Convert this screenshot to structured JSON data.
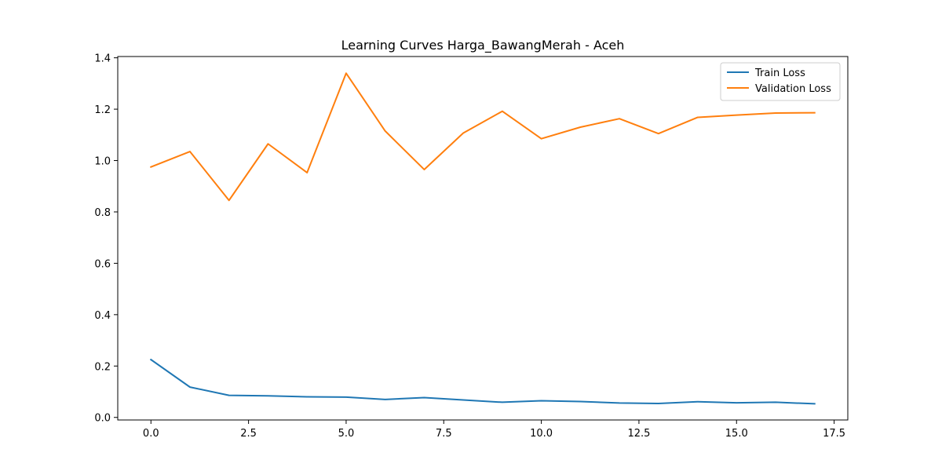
{
  "chart_data": {
    "type": "line",
    "title": "Learning Curves Harga_BawangMerah - Aceh",
    "xlabel": "",
    "ylabel": "",
    "xlim": [
      -0.85,
      17.85
    ],
    "ylim": [
      -0.01,
      1.405
    ],
    "xticks": [
      0.0,
      2.5,
      5.0,
      7.5,
      10.0,
      12.5,
      15.0,
      17.5
    ],
    "xtick_labels": [
      "0.0",
      "2.5",
      "5.0",
      "7.5",
      "10.0",
      "12.5",
      "15.0",
      "17.5"
    ],
    "yticks": [
      0.0,
      0.2,
      0.4,
      0.6,
      0.8,
      1.0,
      1.2,
      1.4
    ],
    "ytick_labels": [
      "0.0",
      "0.2",
      "0.4",
      "0.6",
      "0.8",
      "1.0",
      "1.2",
      "1.4"
    ],
    "grid": false,
    "legend_position": "top-right",
    "x": [
      0,
      1,
      2,
      3,
      4,
      5,
      6,
      7,
      8,
      9,
      10,
      11,
      12,
      13,
      14,
      15,
      16,
      17
    ],
    "series": [
      {
        "name": "Train Loss",
        "color": "#1f77b4",
        "values": [
          0.225,
          0.118,
          0.086,
          0.084,
          0.08,
          0.079,
          0.07,
          0.077,
          0.068,
          0.059,
          0.065,
          0.062,
          0.056,
          0.054,
          0.061,
          0.057,
          0.059,
          0.053
        ]
      },
      {
        "name": "Validation Loss",
        "color": "#ff7f0e",
        "values": [
          0.975,
          1.035,
          0.845,
          1.065,
          0.953,
          1.34,
          1.115,
          0.965,
          1.107,
          1.192,
          1.085,
          1.13,
          1.163,
          1.105,
          1.168,
          1.177,
          1.185,
          1.186
        ]
      }
    ]
  }
}
